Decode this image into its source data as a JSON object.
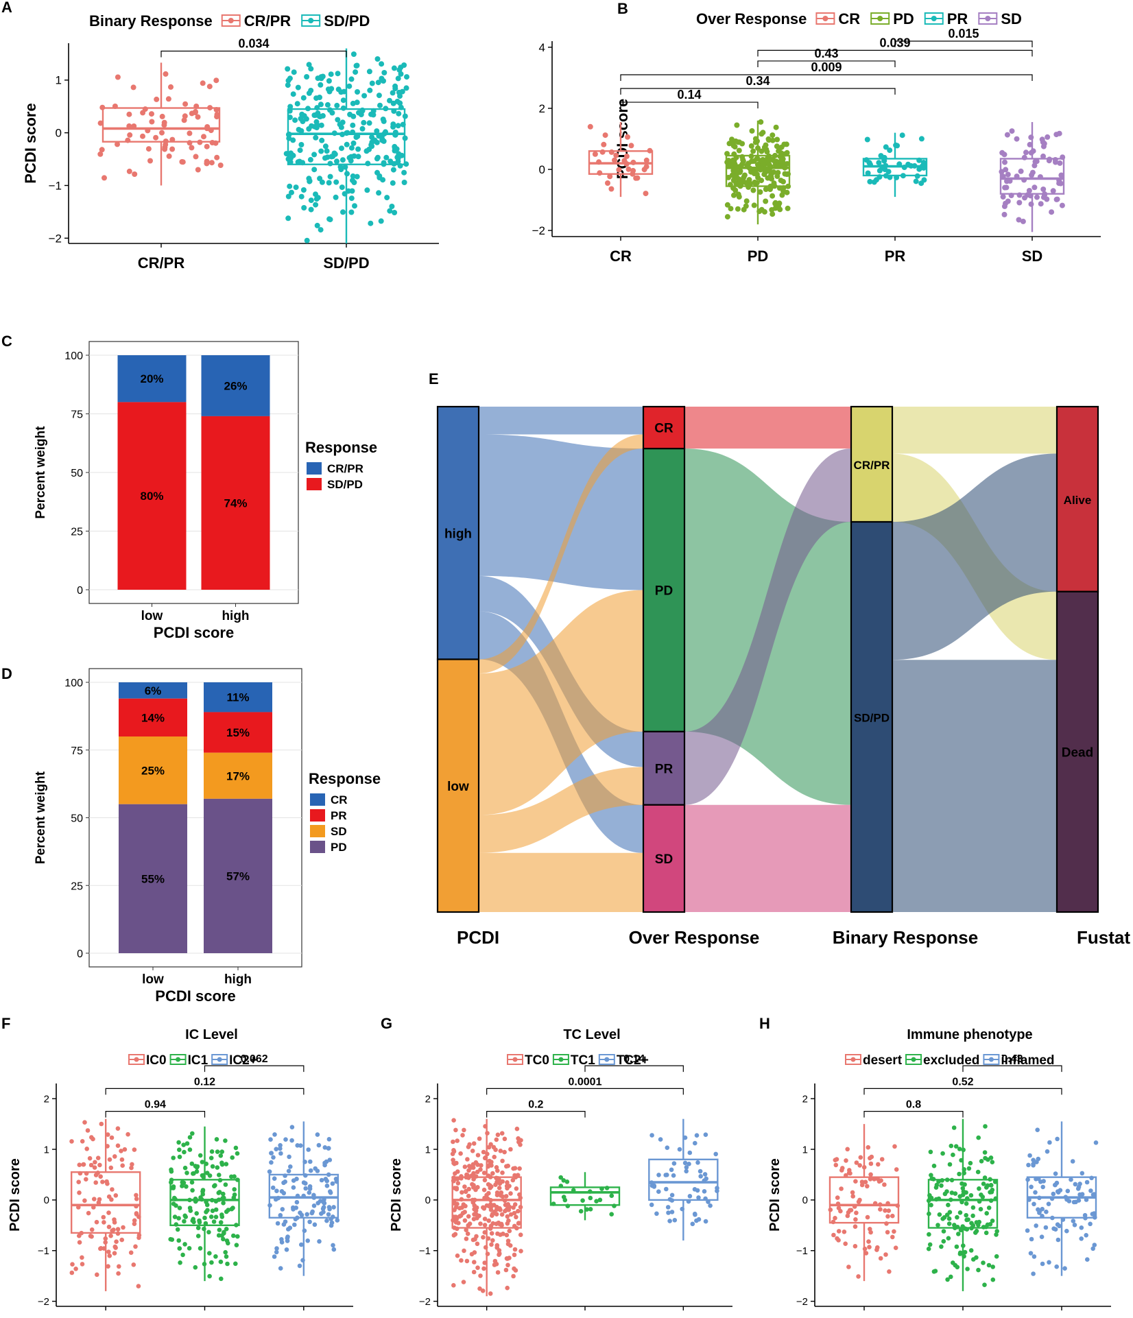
{
  "chart_data": [
    {
      "panel": "A",
      "type": "boxplot",
      "legend_title": "Binary Response",
      "ylabel": "PCDI score",
      "ylim": [
        -2.1,
        1.7
      ],
      "yticks": [
        -2,
        -1,
        0,
        1
      ],
      "groups": [
        {
          "name": "CR/PR",
          "color": "#E8776F",
          "min": -1.0,
          "q1": -0.17,
          "median": 0.08,
          "q3": 0.47,
          "max": 1.33
        },
        {
          "name": "SD/PD",
          "color": "#1ABAB8",
          "min": -2.1,
          "q1": -0.6,
          "median": -0.02,
          "q3": 0.45,
          "max": 1.6
        }
      ],
      "comparisons": [
        {
          "from": 0,
          "to": 1,
          "p": "0.034"
        }
      ]
    },
    {
      "panel": "B",
      "type": "boxplot",
      "legend_title": "Over Response",
      "ylabel": "PCDI score",
      "ylim": [
        -2.2,
        4.2
      ],
      "yticks": [
        -2,
        0,
        2,
        4
      ],
      "groups": [
        {
          "name": "CR",
          "color": "#E8776F",
          "min": -0.9,
          "q1": -0.15,
          "median": 0.2,
          "q3": 0.6,
          "max": 1.55
        },
        {
          "name": "PD",
          "color": "#7AAD2A",
          "min": -1.8,
          "q1": -0.55,
          "median": 0.05,
          "q3": 0.45,
          "max": 1.6
        },
        {
          "name": "PR",
          "color": "#1ABAB8",
          "min": -0.9,
          "q1": -0.2,
          "median": 0.1,
          "q3": 0.35,
          "max": 1.2
        },
        {
          "name": "SD",
          "color": "#A57FC2",
          "min": -2.05,
          "q1": -0.8,
          "median": -0.3,
          "q3": 0.35,
          "max": 1.55
        }
      ],
      "comparisons": [
        {
          "from": 0,
          "to": 1,
          "p": "0.14"
        },
        {
          "from": 0,
          "to": 2,
          "p": "0.34"
        },
        {
          "from": 0,
          "to": 3,
          "p": "0.009"
        },
        {
          "from": 1,
          "to": 2,
          "p": "0.43"
        },
        {
          "from": 1,
          "to": 3,
          "p": "0.039"
        },
        {
          "from": 2,
          "to": 3,
          "p": "0.015"
        }
      ]
    },
    {
      "panel": "C",
      "type": "stacked-bar",
      "xlabel": "PCDI score",
      "ylabel": "Percent weight",
      "ylim": [
        0,
        100
      ],
      "yticks": [
        0,
        25,
        50,
        75,
        100
      ],
      "legend_title": "Response",
      "categories": [
        "low",
        "high"
      ],
      "series": [
        {
          "name": "CR/PR",
          "color": "#2864B4",
          "values": [
            20,
            26
          ]
        },
        {
          "name": "SD/PD",
          "color": "#E8191E",
          "values": [
            80,
            74
          ]
        }
      ]
    },
    {
      "panel": "D",
      "type": "stacked-bar",
      "xlabel": "PCDI score",
      "ylabel": "Percent weight",
      "ylim": [
        0,
        100
      ],
      "yticks": [
        0,
        25,
        50,
        75,
        100
      ],
      "legend_title": "Response",
      "categories": [
        "low",
        "high"
      ],
      "series": [
        {
          "name": "CR",
          "color": "#2864B4",
          "values": [
            6,
            11
          ]
        },
        {
          "name": "PR",
          "color": "#E8191E",
          "values": [
            14,
            15
          ]
        },
        {
          "name": "SD",
          "color": "#F39A1F",
          "values": [
            25,
            17
          ]
        },
        {
          "name": "PD",
          "color": "#6A5289",
          "values": [
            55,
            57
          ]
        }
      ]
    },
    {
      "panel": "E",
      "type": "sankey",
      "axes": [
        "PCDI",
        "Over Response",
        "Binary Response",
        "Fustat"
      ],
      "nodes": [
        {
          "axis": 0,
          "name": "high",
          "color": "#3E6FB4",
          "share": 0.5
        },
        {
          "axis": 0,
          "name": "low",
          "color": "#F19F34",
          "share": 0.5
        },
        {
          "axis": 1,
          "name": "CR",
          "color": "#E0242B",
          "share": 0.083
        },
        {
          "axis": 1,
          "name": "PD",
          "color": "#2F9456",
          "share": 0.56
        },
        {
          "axis": 1,
          "name": "PR",
          "color": "#75598E",
          "share": 0.145
        },
        {
          "axis": 1,
          "name": "SD",
          "color": "#D1477D",
          "share": 0.212
        },
        {
          "axis": 2,
          "name": "CR/PR",
          "color": "#D8D46E",
          "share": 0.228
        },
        {
          "axis": 2,
          "name": "SD/PD",
          "color": "#2E4C74",
          "share": 0.772
        },
        {
          "axis": 3,
          "name": "Alive",
          "color": "#C8313B",
          "share": 0.366
        },
        {
          "axis": 3,
          "name": "Dead",
          "color": "#522E4C",
          "share": 0.634
        }
      ]
    },
    {
      "panel": "F",
      "type": "boxplot",
      "title": "IC Level",
      "ylabel": "PCDI score",
      "ylim": [
        -2.1,
        2.3
      ],
      "yticks": [
        -2,
        -1,
        0,
        1,
        2
      ],
      "groups": [
        {
          "name": "IC0",
          "color": "#E8776F",
          "min": -1.8,
          "q1": -0.65,
          "median": -0.1,
          "q3": 0.55,
          "max": 1.6
        },
        {
          "name": "IC1",
          "color": "#2DB24A",
          "min": -1.6,
          "q1": -0.5,
          "median": 0.0,
          "q3": 0.4,
          "max": 1.45
        },
        {
          "name": "IC2+",
          "color": "#6A97D3",
          "min": -1.5,
          "q1": -0.35,
          "median": 0.05,
          "q3": 0.5,
          "max": 1.55
        }
      ],
      "comparisons": [
        {
          "from": 0,
          "to": 1,
          "p": "0.94"
        },
        {
          "from": 0,
          "to": 2,
          "p": "0.12"
        },
        {
          "from": 1,
          "to": 2,
          "p": "0.062"
        }
      ]
    },
    {
      "panel": "G",
      "type": "boxplot",
      "title": "TC Level",
      "ylabel": "PCDI score",
      "ylim": [
        -2.1,
        2.3
      ],
      "yticks": [
        -2,
        -1,
        0,
        1,
        2
      ],
      "groups": [
        {
          "name": "TC0",
          "color": "#E8776F",
          "min": -1.9,
          "q1": -0.55,
          "median": 0.0,
          "q3": 0.45,
          "max": 1.6
        },
        {
          "name": "TC1",
          "color": "#2DB24A",
          "min": -0.4,
          "q1": -0.1,
          "median": 0.15,
          "q3": 0.25,
          "max": 0.55
        },
        {
          "name": "TC2+",
          "color": "#6A97D3",
          "min": -0.8,
          "q1": 0.0,
          "median": 0.35,
          "q3": 0.8,
          "max": 1.6
        }
      ],
      "comparisons": [
        {
          "from": 0,
          "to": 1,
          "p": "0.2"
        },
        {
          "from": 0,
          "to": 2,
          "p": "0.0001"
        },
        {
          "from": 1,
          "to": 2,
          "p": "0.14"
        }
      ]
    },
    {
      "panel": "H",
      "type": "boxplot",
      "title": "Immune phenotype",
      "ylabel": "PCDI score",
      "ylim": [
        -2.1,
        2.3
      ],
      "yticks": [
        -2,
        -1,
        0,
        1,
        2
      ],
      "groups": [
        {
          "name": "desert",
          "color": "#E8776F",
          "min": -1.6,
          "q1": -0.45,
          "median": -0.1,
          "q3": 0.45,
          "max": 1.5
        },
        {
          "name": "excluded",
          "color": "#2DB24A",
          "min": -1.8,
          "q1": -0.55,
          "median": 0.0,
          "q3": 0.4,
          "max": 1.6
        },
        {
          "name": "inflamed",
          "color": "#6A97D3",
          "min": -1.5,
          "q1": -0.35,
          "median": 0.05,
          "q3": 0.45,
          "max": 1.55
        }
      ],
      "comparisons": [
        {
          "from": 0,
          "to": 1,
          "p": "0.8"
        },
        {
          "from": 0,
          "to": 2,
          "p": "0.52"
        },
        {
          "from": 1,
          "to": 2,
          "p": "0.43"
        }
      ]
    }
  ]
}
